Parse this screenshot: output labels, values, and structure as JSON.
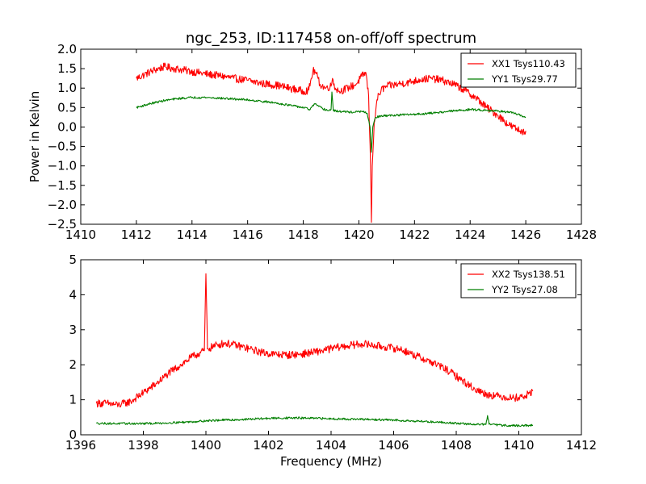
{
  "title": "ngc_253, ID:117458 on-off/off spectrum",
  "chart_data": [
    {
      "type": "line",
      "ylabel": "Power in Kelvin",
      "xlabel": "",
      "xlim": [
        1410,
        1428
      ],
      "ylim": [
        -2.5,
        2.0
      ],
      "xticks": [
        1410,
        1412,
        1414,
        1416,
        1418,
        1420,
        1422,
        1424,
        1426,
        1428
      ],
      "yticks": [
        -2.5,
        -2.0,
        -1.5,
        -1.0,
        -0.5,
        0.0,
        0.5,
        1.0,
        1.5,
        2.0
      ],
      "xtick_labels": [
        "1410",
        "1412",
        "1414",
        "1416",
        "1418",
        "1420",
        "1422",
        "1424",
        "1426",
        "1428"
      ],
      "ytick_labels": [
        "−2.5",
        "−2.0",
        "−1.5",
        "−1.0",
        "−0.5",
        "0.0",
        "0.5",
        "1.0",
        "1.5",
        "2.0"
      ],
      "legend_position": "top-right",
      "grid": false,
      "series": [
        {
          "name": "XX1 Tsys110.43",
          "color": "#ff0000",
          "x": [
            1412.0,
            1412.3,
            1412.6,
            1413.0,
            1413.4,
            1413.8,
            1414.2,
            1414.6,
            1415.0,
            1415.5,
            1416.0,
            1416.5,
            1417.0,
            1417.5,
            1418.0,
            1418.2,
            1418.35,
            1418.45,
            1418.6,
            1418.8,
            1419.0,
            1419.05,
            1419.15,
            1419.3,
            1419.6,
            1419.9,
            1420.1,
            1420.25,
            1420.35,
            1420.42,
            1420.45,
            1420.48,
            1420.55,
            1420.65,
            1420.8,
            1421.0,
            1421.4,
            1421.8,
            1422.2,
            1422.6,
            1423.0,
            1423.4,
            1423.8,
            1424.2,
            1424.6,
            1425.0,
            1425.4,
            1425.8,
            1426.0
          ],
          "y": [
            1.25,
            1.35,
            1.45,
            1.55,
            1.5,
            1.45,
            1.4,
            1.35,
            1.32,
            1.25,
            1.2,
            1.12,
            1.08,
            1.0,
            0.92,
            0.95,
            1.45,
            1.4,
            1.1,
            1.0,
            1.05,
            1.25,
            1.0,
            0.92,
            1.0,
            1.1,
            1.3,
            1.4,
            0.8,
            -1.0,
            -2.45,
            -1.0,
            0.1,
            0.7,
            0.95,
            1.05,
            1.1,
            1.15,
            1.22,
            1.25,
            1.2,
            1.1,
            0.95,
            0.75,
            0.5,
            0.3,
            0.05,
            -0.1,
            -0.1
          ]
        },
        {
          "name": "YY1 Tsys29.77",
          "color": "#007f00",
          "x": [
            1412.0,
            1412.5,
            1413.0,
            1413.5,
            1414.0,
            1414.5,
            1415.0,
            1415.5,
            1416.0,
            1416.5,
            1417.0,
            1417.5,
            1418.0,
            1418.25,
            1418.4,
            1418.5,
            1418.7,
            1418.9,
            1419.0,
            1419.03,
            1419.08,
            1419.3,
            1419.8,
            1420.1,
            1420.3,
            1420.4,
            1420.45,
            1420.5,
            1420.6,
            1420.8,
            1421.2,
            1421.8,
            1422.5,
            1423.2,
            1424.0,
            1424.6,
            1425.2,
            1425.6,
            1426.0
          ],
          "y": [
            0.5,
            0.6,
            0.68,
            0.73,
            0.76,
            0.76,
            0.74,
            0.72,
            0.7,
            0.66,
            0.62,
            0.56,
            0.5,
            0.45,
            0.6,
            0.55,
            0.47,
            0.42,
            0.45,
            0.9,
            0.42,
            0.4,
            0.38,
            0.4,
            0.35,
            0.0,
            -0.65,
            0.0,
            0.25,
            0.28,
            0.3,
            0.32,
            0.35,
            0.4,
            0.45,
            0.43,
            0.4,
            0.35,
            0.25
          ]
        }
      ]
    },
    {
      "type": "line",
      "ylabel": "",
      "xlabel": "Frequency (MHz)",
      "xlim": [
        1396,
        1412
      ],
      "ylim": [
        0,
        5
      ],
      "xticks": [
        1396,
        1398,
        1400,
        1402,
        1404,
        1406,
        1408,
        1410,
        1412
      ],
      "yticks": [
        0,
        1,
        2,
        3,
        4,
        5
      ],
      "xtick_labels": [
        "1396",
        "1398",
        "1400",
        "1402",
        "1404",
        "1406",
        "1408",
        "1410",
        "1412"
      ],
      "ytick_labels": [
        "0",
        "1",
        "2",
        "3",
        "4",
        "5"
      ],
      "legend_position": "top-right",
      "grid": false,
      "series": [
        {
          "name": "XX2 Tsys138.51",
          "color": "#ff0000",
          "x": [
            1396.5,
            1396.8,
            1397.2,
            1397.6,
            1398.0,
            1398.4,
            1398.8,
            1399.2,
            1399.6,
            1399.95,
            1400.0,
            1400.05,
            1400.3,
            1400.6,
            1401.0,
            1401.4,
            1401.8,
            1402.2,
            1402.6,
            1403.0,
            1403.4,
            1403.8,
            1404.2,
            1404.6,
            1405.0,
            1405.4,
            1405.8,
            1406.2,
            1406.6,
            1407.0,
            1407.4,
            1407.8,
            1408.2,
            1408.6,
            1409.0,
            1409.4,
            1409.8,
            1410.2,
            1410.45
          ],
          "y": [
            0.9,
            0.9,
            0.85,
            0.95,
            1.2,
            1.45,
            1.75,
            2.0,
            2.25,
            2.4,
            4.6,
            2.45,
            2.55,
            2.62,
            2.55,
            2.45,
            2.35,
            2.3,
            2.28,
            2.3,
            2.35,
            2.42,
            2.5,
            2.55,
            2.6,
            2.55,
            2.5,
            2.45,
            2.3,
            2.15,
            2.0,
            1.8,
            1.55,
            1.3,
            1.15,
            1.1,
            1.05,
            1.1,
            1.25
          ]
        },
        {
          "name": "YY2 Tsys27.08",
          "color": "#007f00",
          "x": [
            1396.5,
            1397.0,
            1397.5,
            1398.0,
            1398.5,
            1399.0,
            1399.5,
            1400.0,
            1400.5,
            1401.0,
            1401.5,
            1402.0,
            1402.5,
            1403.0,
            1403.5,
            1404.0,
            1404.5,
            1405.0,
            1405.5,
            1406.0,
            1406.5,
            1407.0,
            1407.5,
            1408.0,
            1408.5,
            1408.95,
            1409.0,
            1409.05,
            1409.5,
            1410.0,
            1410.45
          ],
          "y": [
            0.33,
            0.32,
            0.32,
            0.32,
            0.33,
            0.35,
            0.37,
            0.4,
            0.42,
            0.43,
            0.45,
            0.47,
            0.48,
            0.48,
            0.47,
            0.46,
            0.45,
            0.44,
            0.43,
            0.42,
            0.4,
            0.38,
            0.36,
            0.33,
            0.3,
            0.3,
            0.55,
            0.3,
            0.27,
            0.26,
            0.27
          ]
        }
      ]
    }
  ]
}
